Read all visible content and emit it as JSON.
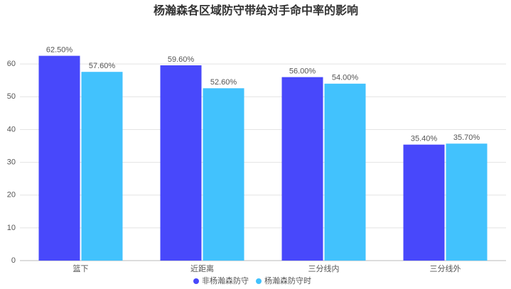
{
  "chart_data": {
    "type": "bar",
    "title": "杨瀚森各区域防守带给对手命中率的影响",
    "categories": [
      "篮下",
      "近距离",
      "三分线内",
      "三分线外"
    ],
    "series": [
      {
        "name": "非杨瀚森防守",
        "color": "#4848fb",
        "values": [
          62.5,
          59.6,
          56.0,
          35.4
        ],
        "value_labels": [
          "62.50%",
          "59.60%",
          "56.00%",
          "35.40%"
        ]
      },
      {
        "name": "杨瀚森防守时",
        "color": "#42c2fd",
        "values": [
          57.6,
          52.6,
          54.0,
          35.7
        ],
        "value_labels": [
          "57.60%",
          "52.60%",
          "54.00%",
          "35.70%"
        ]
      }
    ],
    "ylim": [
      0,
      70
    ],
    "yticks": [
      0,
      10,
      20,
      30,
      40,
      50,
      60
    ],
    "grid": true,
    "legend": "bottom"
  }
}
